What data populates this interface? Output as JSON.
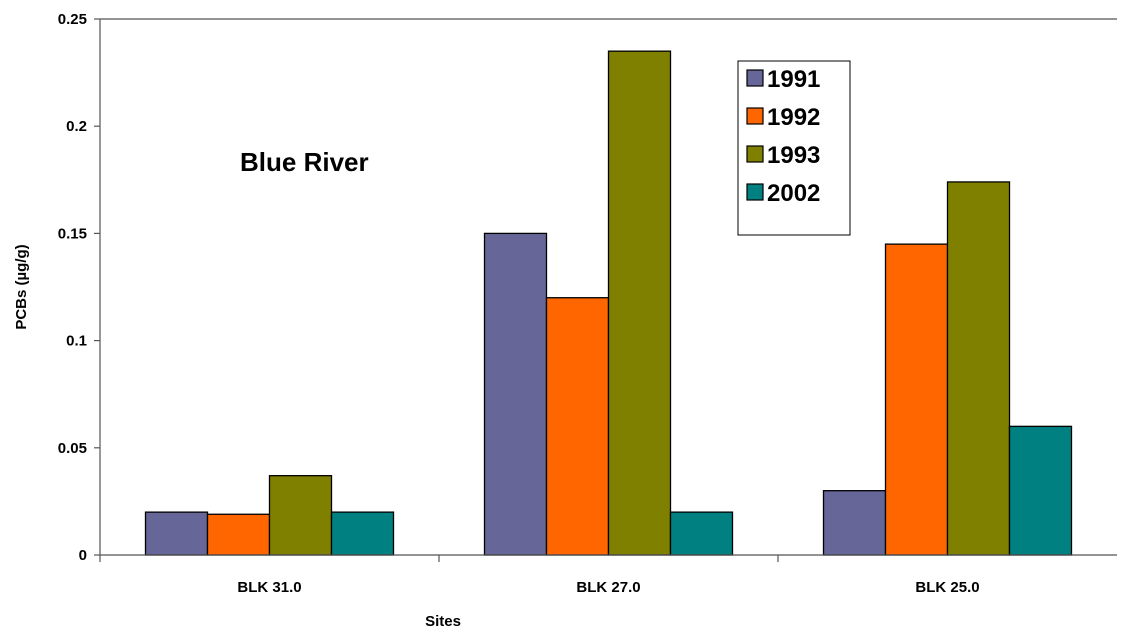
{
  "chart_data": {
    "type": "bar",
    "categories": [
      "BLK 31.0",
      "BLK 27.0",
      "BLK 25.0"
    ],
    "series": [
      {
        "name": "1991",
        "color": "#666699",
        "values": [
          0.02,
          0.15,
          0.03
        ]
      },
      {
        "name": "1992",
        "color": "#FF6600",
        "values": [
          0.019,
          0.12,
          0.145
        ]
      },
      {
        "name": "1993",
        "color": "#808000",
        "values": [
          0.037,
          0.235,
          0.174
        ]
      },
      {
        "name": "2002",
        "color": "#008080",
        "values": [
          0.02,
          0.02,
          0.06
        ]
      }
    ],
    "title": "",
    "annotation": "Blue River",
    "xlabel": "Sites",
    "ylabel": "PCBs (µg/g)",
    "ylim": [
      0,
      0.25
    ],
    "yticks": [
      {
        "value": 0,
        "label": "0"
      },
      {
        "value": 0.05,
        "label": "0.05"
      },
      {
        "value": 0.1,
        "label": "0.1"
      },
      {
        "value": 0.15,
        "label": "0.15"
      },
      {
        "value": 0.2,
        "label": "0.2"
      },
      {
        "value": 0.25,
        "label": "0.25"
      }
    ],
    "grid": false,
    "legend_position": "top-right"
  }
}
